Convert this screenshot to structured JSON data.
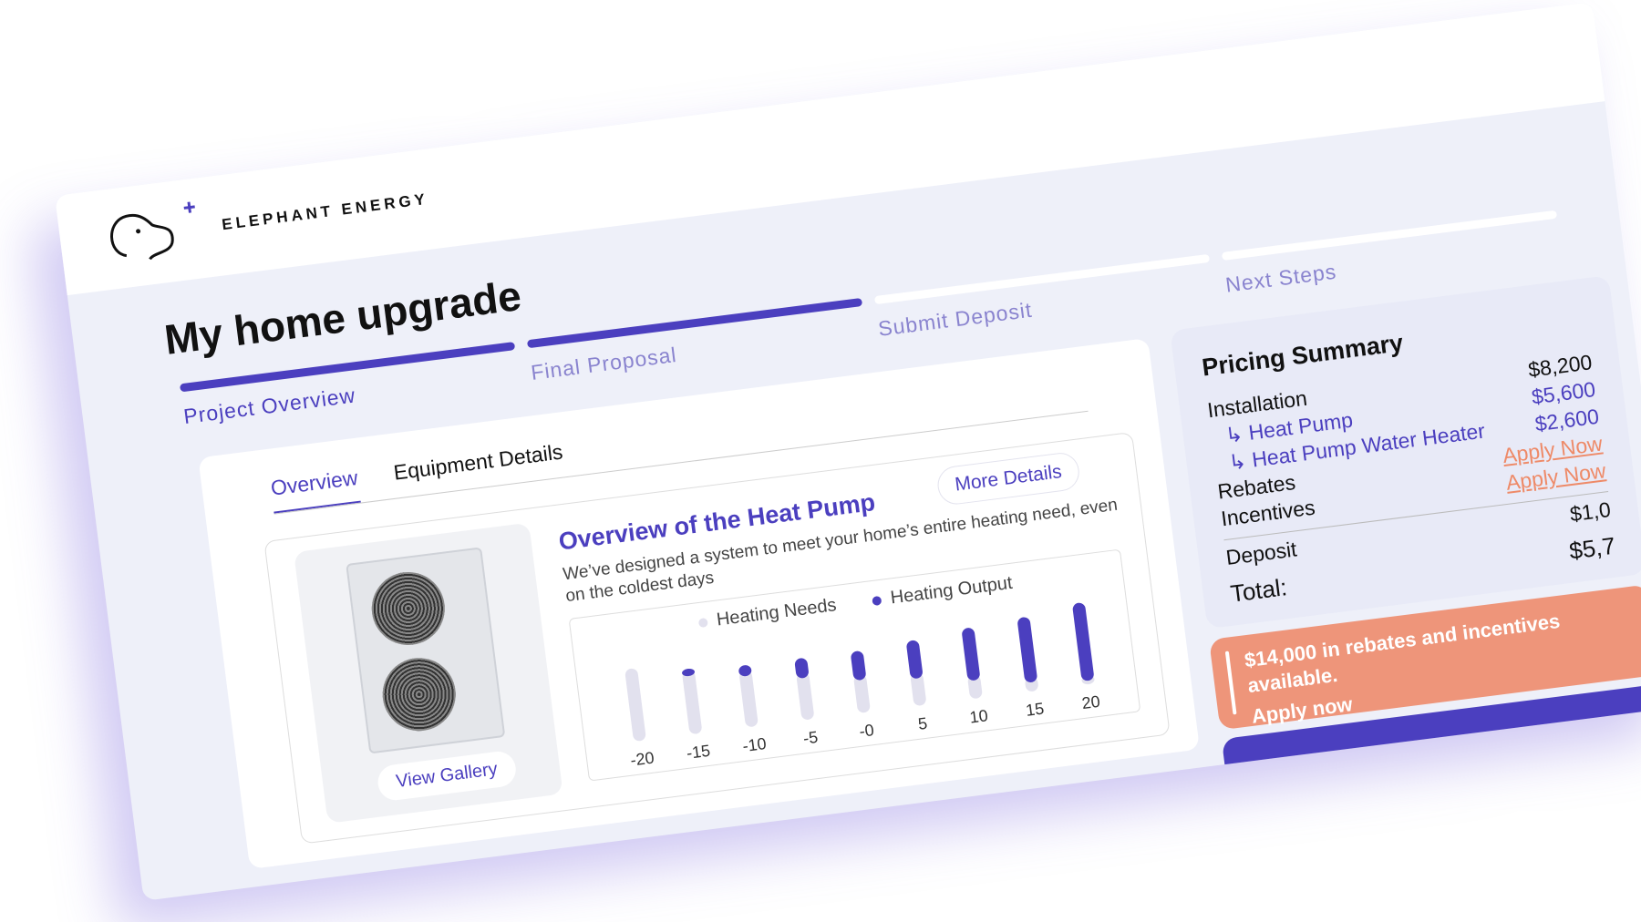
{
  "brand": {
    "name": "ELEPHANT ENERGY",
    "logo": "elephant-logo"
  },
  "page_title": "My home upgrade",
  "steps": [
    {
      "label": "Project Overview",
      "done": true,
      "current": true
    },
    {
      "label": "Final Proposal",
      "done": true,
      "current": false
    },
    {
      "label": "Submit Deposit",
      "done": false,
      "current": false
    },
    {
      "label": "Next Steps",
      "done": false,
      "current": false
    }
  ],
  "tabs": [
    {
      "label": "Overview",
      "active": true
    },
    {
      "label": "Equipment Details",
      "active": false
    }
  ],
  "overview": {
    "title": "Overview of the Heat Pump",
    "more_details": "More Details",
    "description": "We’ve designed a system to meet your home’s entire heating need, even on the coldest days",
    "gallery": "View Gallery"
  },
  "chart_data": {
    "type": "bar",
    "stacked": true,
    "categories": [
      "-20",
      "-15",
      "-10",
      "-5",
      "-0",
      "5",
      "10",
      "15",
      "20"
    ],
    "series": [
      {
        "name": "Heating Needs",
        "color": "#e2e1ee",
        "values": [
          80,
          70,
          62,
          52,
          42,
          36,
          26,
          16,
          10
        ]
      },
      {
        "name": "Heating Output",
        "color": "#4b3fbf",
        "values": [
          0,
          8,
          12,
          22,
          32,
          42,
          58,
          72,
          86
        ]
      }
    ],
    "legend": "top"
  },
  "pricing": {
    "title": "Pricing Summary",
    "rows": [
      {
        "label": "Installation",
        "value": "$8,200",
        "type": "main"
      },
      {
        "label": "↳ Heat Pump",
        "value": "$5,600",
        "type": "sub"
      },
      {
        "label": "↳ Heat Pump Water Heater",
        "value": "$2,600",
        "type": "sub"
      },
      {
        "label": "Rebates",
        "value": "Apply Now",
        "type": "apply"
      },
      {
        "label": "Incentives",
        "value": "Apply Now",
        "type": "apply"
      }
    ],
    "deposit": {
      "label": "Deposit",
      "value": "$1,0"
    },
    "total": {
      "label": "Total:",
      "value": "$5,7"
    }
  },
  "promo": {
    "text": "$14,000 in rebates and incentives available.",
    "cta": "Apply now"
  },
  "colors": {
    "accent": "#4b3fbf",
    "promo": "#ee957a",
    "background": "#eef0f9"
  }
}
